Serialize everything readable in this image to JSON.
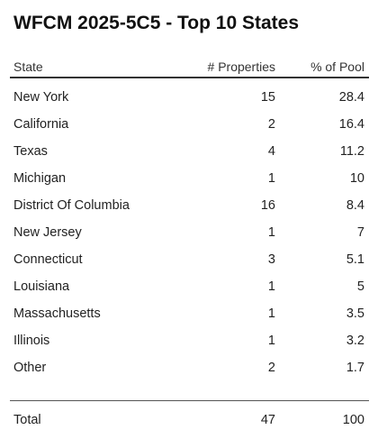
{
  "title": "WFCM 2025-5C5 - Top 10 States",
  "columns": {
    "state": "State",
    "properties": "# Properties",
    "pct_pool": "% of Pool"
  },
  "rows": [
    {
      "state": "New York",
      "properties": "15",
      "pct_pool": "28.4"
    },
    {
      "state": "California",
      "properties": "2",
      "pct_pool": "16.4"
    },
    {
      "state": "Texas",
      "properties": "4",
      "pct_pool": "11.2"
    },
    {
      "state": "Michigan",
      "properties": "1",
      "pct_pool": "10"
    },
    {
      "state": "District Of Columbia",
      "properties": "16",
      "pct_pool": "8.4"
    },
    {
      "state": "New Jersey",
      "properties": "1",
      "pct_pool": "7"
    },
    {
      "state": "Connecticut",
      "properties": "3",
      "pct_pool": "5.1"
    },
    {
      "state": "Louisiana",
      "properties": "1",
      "pct_pool": "5"
    },
    {
      "state": "Massachusetts",
      "properties": "1",
      "pct_pool": "3.5"
    },
    {
      "state": "Illinois",
      "properties": "1",
      "pct_pool": "3.2"
    },
    {
      "state": "Other",
      "properties": "2",
      "pct_pool": "1.7"
    }
  ],
  "total": {
    "label": "Total",
    "properties": "47",
    "pct_pool": "100"
  }
}
